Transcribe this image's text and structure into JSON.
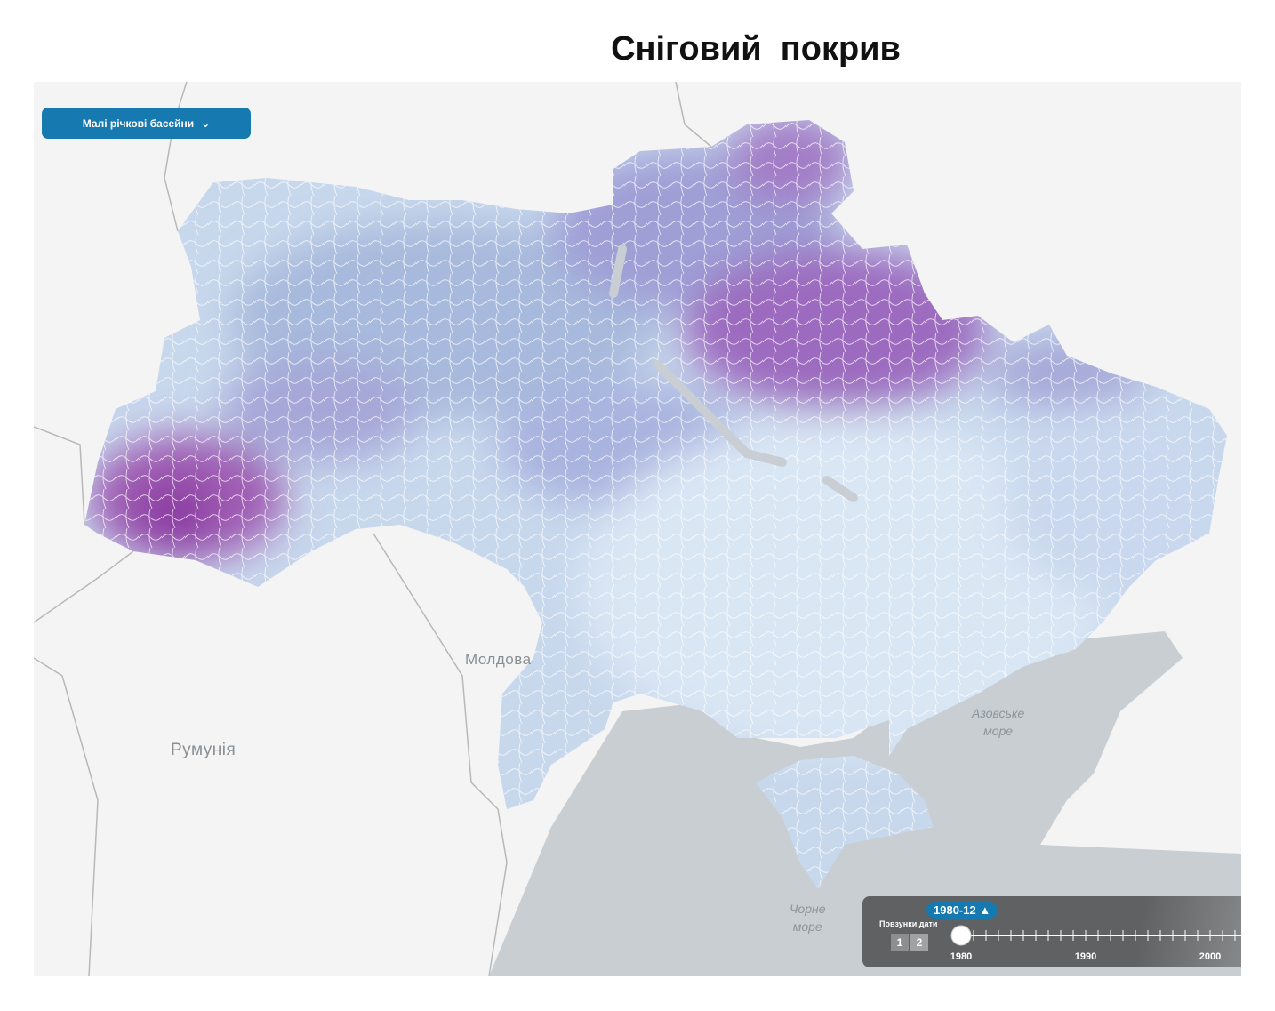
{
  "header": {
    "title": "Сніговий  покрив"
  },
  "map": {
    "layer_dropdown": "Малі річкові басейни",
    "labels": {
      "moldova": "Молдова",
      "romania": "Румунія",
      "azov_sea": [
        "Азовське",
        "море"
      ],
      "black_sea": [
        "Чорне",
        "море"
      ]
    },
    "date_slider": {
      "current": "1980-12",
      "caption": "Повзунки дати",
      "buttons": [
        "1",
        "2"
      ],
      "ticks": [
        "1980",
        "1990",
        "2000"
      ]
    }
  }
}
